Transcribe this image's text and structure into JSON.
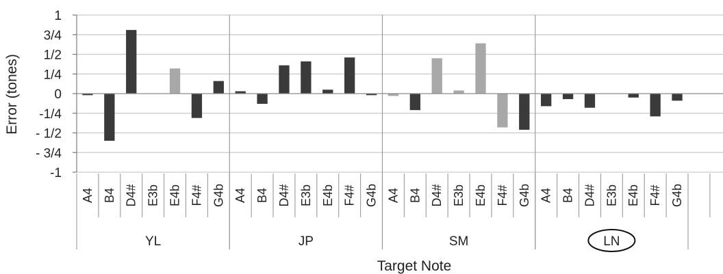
{
  "chart_data": {
    "type": "bar",
    "ylabel": "Error (tones)",
    "xlabel": "Target Note",
    "ylim": [
      -1,
      1
    ],
    "yticks": [
      {
        "value": 1,
        "label": "1"
      },
      {
        "value": 0.75,
        "label": "3/4"
      },
      {
        "value": 0.5,
        "label": "1/2"
      },
      {
        "value": 0.25,
        "label": "1/4"
      },
      {
        "value": 0,
        "label": "0"
      },
      {
        "value": -0.25,
        "label": "-1/4"
      },
      {
        "value": -0.5,
        "label": "- 1/2"
      },
      {
        "value": -0.75,
        "label": "- 3/4"
      },
      {
        "value": -1,
        "label": "-1"
      }
    ],
    "grid": true,
    "groups": [
      {
        "name": "YL",
        "notes": [
          "A4",
          "B4",
          "D4#",
          "E3b",
          "E4b",
          "F4#",
          "G4b"
        ],
        "values": [
          -0.02,
          -0.6,
          0.81,
          0,
          0.32,
          -0.31,
          0.16
        ],
        "colors": [
          "#3a3a3a",
          "#3a3a3a",
          "#3a3a3a",
          "#3a3a3a",
          "#a8a8a8",
          "#3a3a3a",
          "#3a3a3a"
        ]
      },
      {
        "name": "JP",
        "notes": [
          "A4",
          "B4",
          "D4#",
          "E3b",
          "E4b",
          "F4#",
          "G4b"
        ],
        "values": [
          0.03,
          -0.13,
          0.36,
          0.41,
          0.05,
          0.46,
          -0.02
        ],
        "colors": [
          "#3a3a3a",
          "#3a3a3a",
          "#3a3a3a",
          "#3a3a3a",
          "#3a3a3a",
          "#3a3a3a",
          "#3a3a3a"
        ]
      },
      {
        "name": "SM",
        "notes": [
          "A4",
          "B4",
          "D4#",
          "E3b",
          "E4b",
          "F4#",
          "G4b"
        ],
        "values": [
          -0.03,
          -0.21,
          0.45,
          0.04,
          0.64,
          -0.43,
          -0.46
        ],
        "colors": [
          "#a8a8a8",
          "#3a3a3a",
          "#a8a8a8",
          "#a8a8a8",
          "#a8a8a8",
          "#a8a8a8",
          "#3a3a3a"
        ]
      },
      {
        "name": "LN",
        "notes": [
          "A4",
          "B4",
          "D4#",
          "E3b",
          "E4b",
          "F4#",
          "G4b"
        ],
        "values": [
          -0.16,
          -0.07,
          -0.18,
          0,
          -0.05,
          -0.29,
          -0.09
        ],
        "colors": [
          "#3a3a3a",
          "#3a3a3a",
          "#3a3a3a",
          "#3a3a3a",
          "#3a3a3a",
          "#3a3a3a",
          "#3a3a3a"
        ],
        "circled": true
      }
    ]
  }
}
